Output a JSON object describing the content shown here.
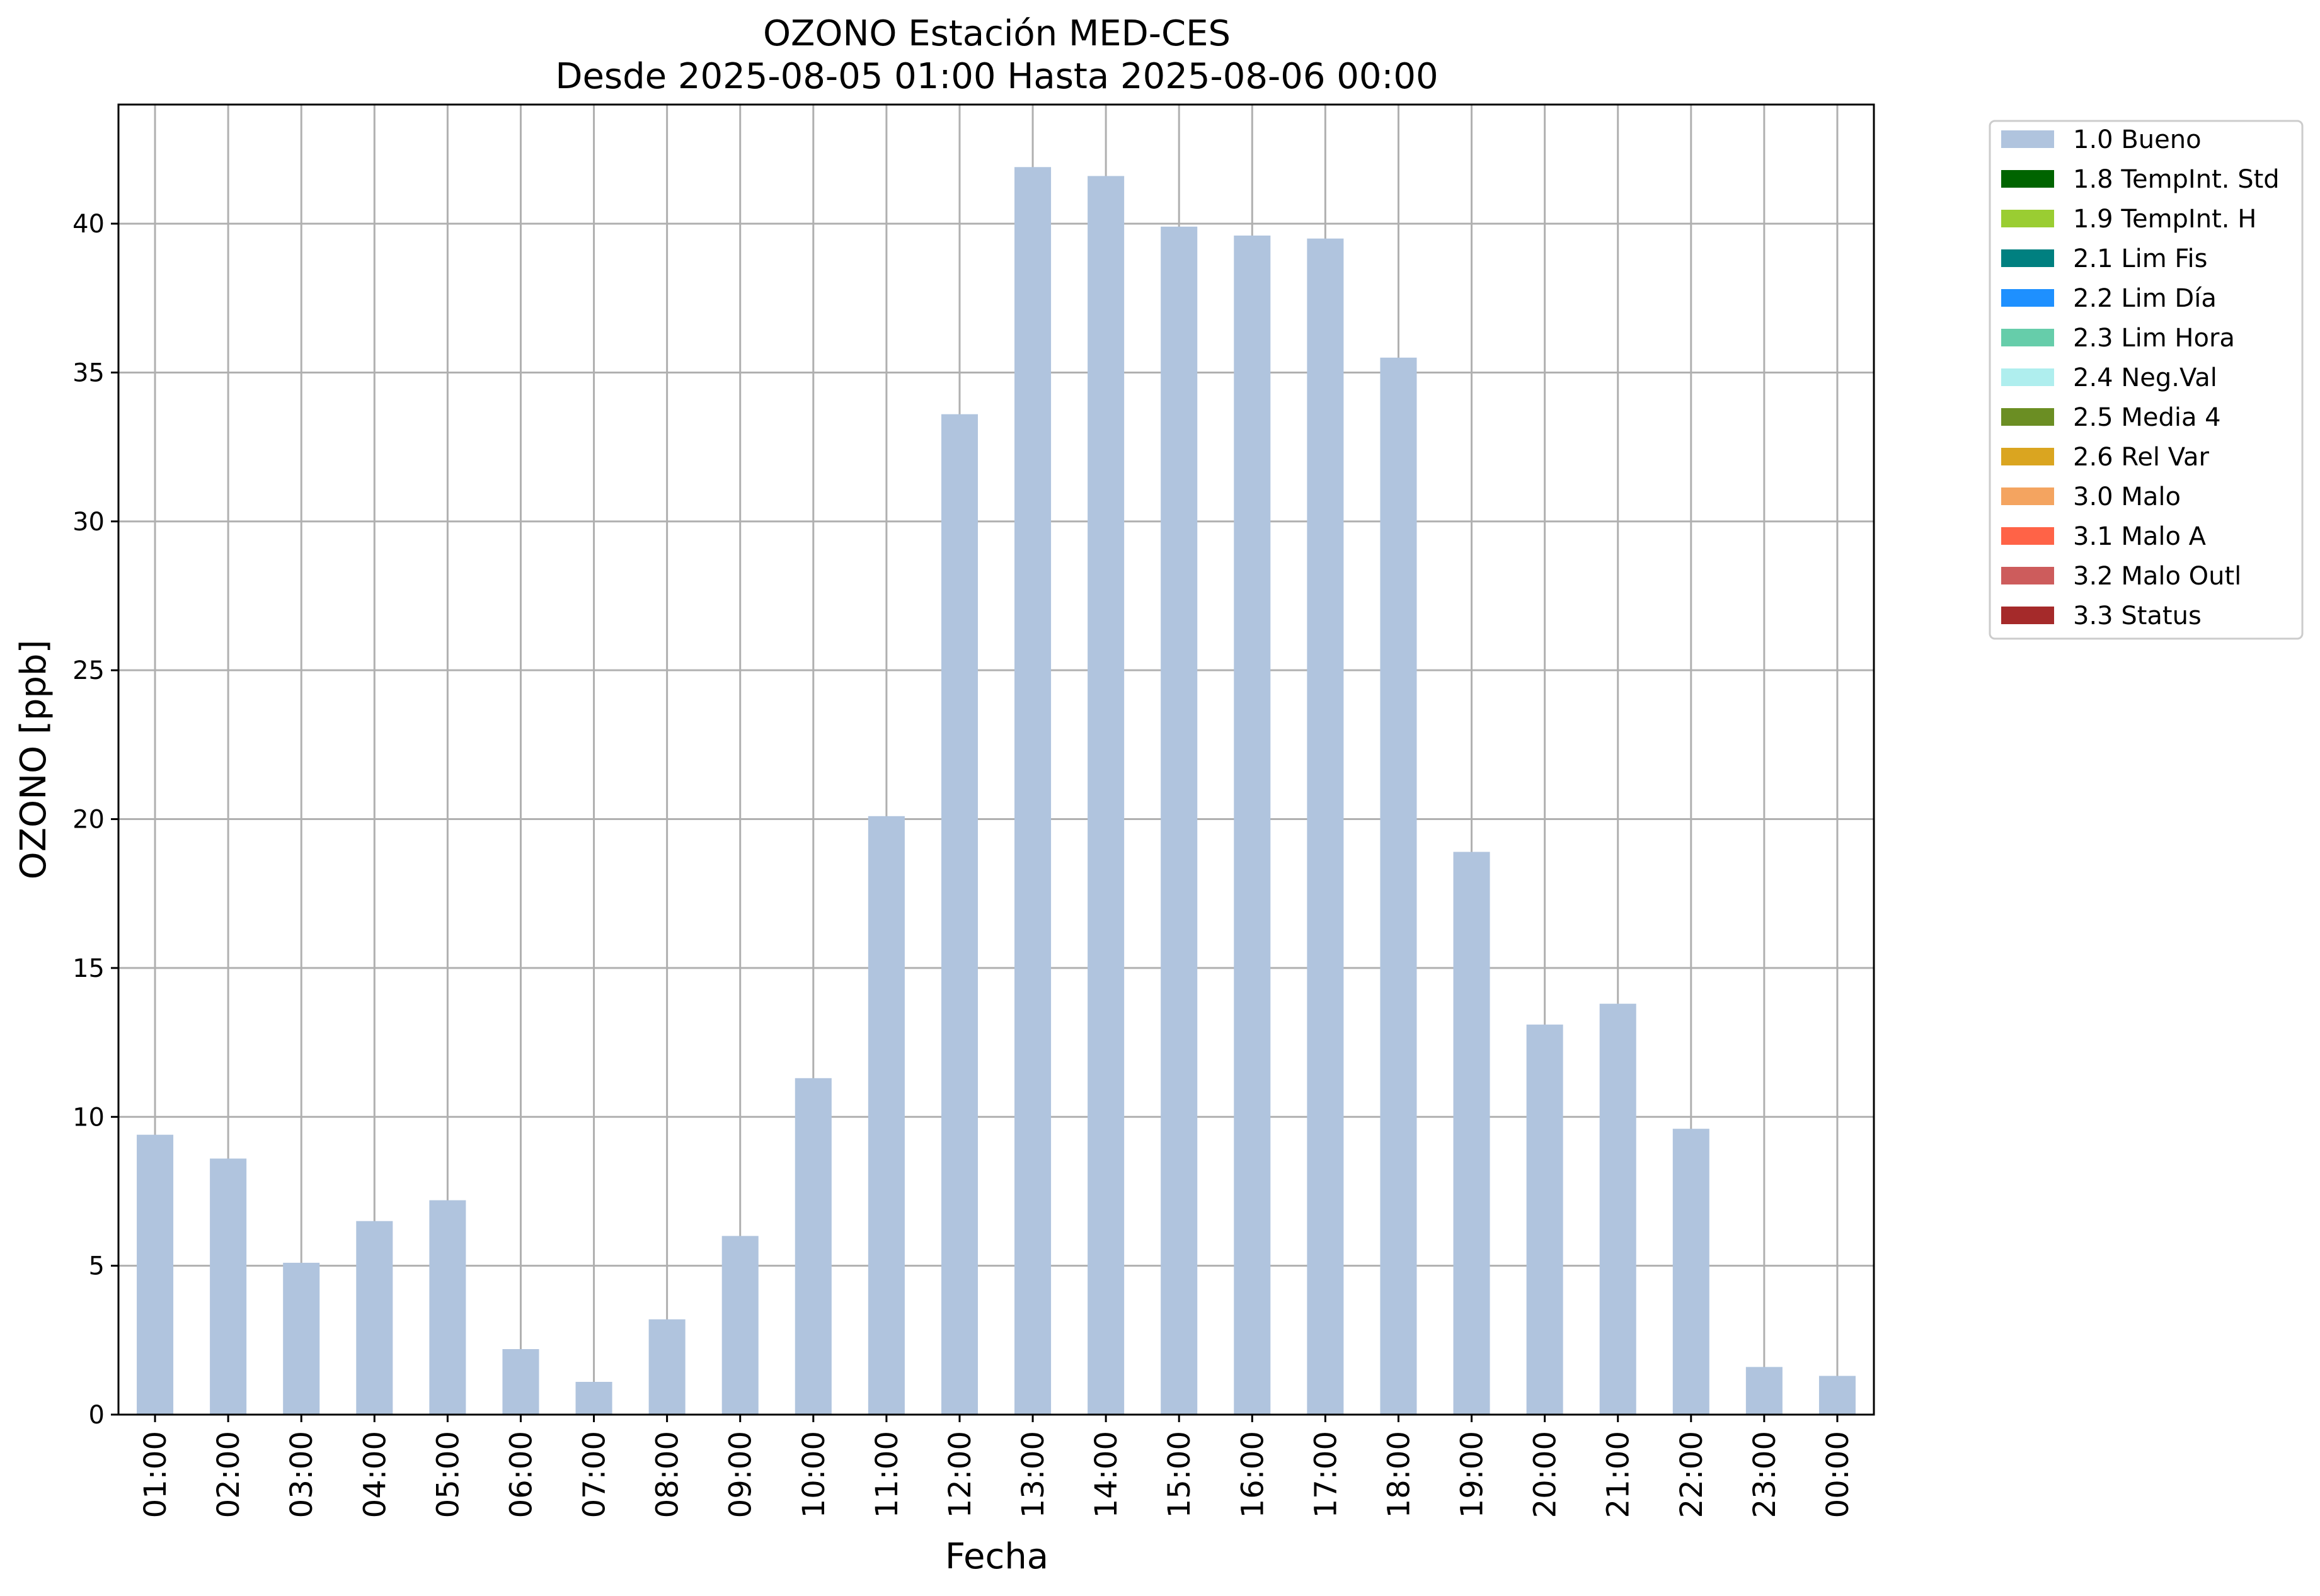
{
  "colors": {
    "bar": "#b0c4de",
    "grid": "#b0b0b0",
    "axis": "#000000"
  },
  "chart_data": {
    "type": "bar",
    "title": "OZONO Estación MED-CES",
    "subtitle": "Desde 2025-08-05 01:00 Hasta 2025-08-06 00:00",
    "xlabel": "Fecha",
    "ylabel": "OZONO [ppb]",
    "ylim": [
      0,
      44
    ],
    "yticks": [
      0,
      5,
      10,
      15,
      20,
      25,
      30,
      35,
      40
    ],
    "grid": true,
    "legend_position": "outside-right-top",
    "categories": [
      "01:00",
      "02:00",
      "03:00",
      "04:00",
      "05:00",
      "06:00",
      "07:00",
      "08:00",
      "09:00",
      "10:00",
      "11:00",
      "12:00",
      "13:00",
      "14:00",
      "15:00",
      "16:00",
      "17:00",
      "18:00",
      "19:00",
      "20:00",
      "21:00",
      "22:00",
      "23:00",
      "00:00"
    ],
    "series": [
      {
        "name": "1.0 Bueno",
        "color": "#b0c4de",
        "values": [
          9.4,
          8.6,
          5.1,
          6.5,
          7.2,
          2.2,
          1.1,
          3.2,
          6.0,
          11.3,
          20.1,
          33.6,
          41.9,
          41.6,
          39.9,
          39.6,
          39.5,
          35.5,
          18.9,
          13.1,
          13.8,
          9.6,
          1.6,
          1.3
        ]
      }
    ],
    "legend": [
      {
        "label": "1.0 Bueno",
        "color": "#b0c4de"
      },
      {
        "label": "1.8 TempInt. Std",
        "color": "#006400"
      },
      {
        "label": "1.9 TempInt. H",
        "color": "#9acd32"
      },
      {
        "label": "2.1 Lim Fis",
        "color": "#008080"
      },
      {
        "label": "2.2 Lim Día",
        "color": "#1e90ff"
      },
      {
        "label": "2.3 Lim Hora",
        "color": "#66cdaa"
      },
      {
        "label": "2.4 Neg.Val",
        "color": "#afeeee"
      },
      {
        "label": "2.5 Media 4",
        "color": "#6b8e23"
      },
      {
        "label": "2.6 Rel Var",
        "color": "#daa520"
      },
      {
        "label": "3.0 Malo",
        "color": "#f4a460"
      },
      {
        "label": "3.1 Malo A",
        "color": "#ff6347"
      },
      {
        "label": "3.2 Malo Outl",
        "color": "#cd5c5c"
      },
      {
        "label": "3.3 Status",
        "color": "#a52a2a"
      }
    ]
  }
}
